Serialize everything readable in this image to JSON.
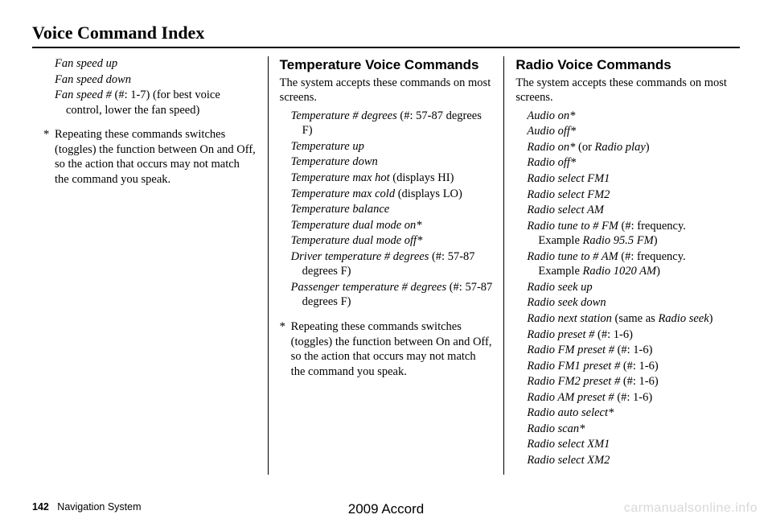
{
  "page": {
    "title": "Voice Command Index",
    "footer_page": "142",
    "footer_label": "Navigation System",
    "footer_center": "2009  Accord",
    "watermark": "carmanualsonline.info"
  },
  "col1": {
    "commands": [
      {
        "name": "Fan speed up",
        "suffix": ""
      },
      {
        "name": "Fan speed down",
        "suffix": ""
      },
      {
        "name": "Fan speed #",
        "suffix": " (#: 1-7) (for best voice control, lower the fan speed)"
      }
    ],
    "note_star": "*",
    "note": "Repeating these commands switches (toggles) the function between On and Off, so the action that occurs may not match the command you speak."
  },
  "col2": {
    "heading": "Temperature Voice Commands",
    "intro": "The system accepts these commands on most screens.",
    "commands": [
      {
        "name": "Temperature # degrees",
        "suffix": " (#: 57-87 degrees F)"
      },
      {
        "name": "Temperature up",
        "suffix": ""
      },
      {
        "name": "Temperature down",
        "suffix": ""
      },
      {
        "name": "Temperature max hot",
        "suffix": " (displays HI)"
      },
      {
        "name": "Temperature max cold",
        "suffix": " (displays LO)"
      },
      {
        "name": "Temperature balance",
        "suffix": ""
      },
      {
        "name": "Temperature dual mode on*",
        "suffix": ""
      },
      {
        "name": "Temperature dual mode off*",
        "suffix": ""
      },
      {
        "name": "Driver temperature # degrees",
        "suffix": " (#: 57-87 degrees F)"
      },
      {
        "name": "Passenger temperature # degrees",
        "suffix": " (#: 57-87 degrees F)"
      }
    ],
    "note_star": "*",
    "note": "Repeating these commands switches (toggles) the function between On and Off, so the action that occurs may not match the command you speak."
  },
  "col3": {
    "heading": "Radio Voice Commands",
    "intro": "The system accepts these commands on most screens.",
    "commands": [
      {
        "name": "Audio on*",
        "suffix": ""
      },
      {
        "name": "Audio off*",
        "suffix": ""
      },
      {
        "name": "Radio on*",
        "suffix": " (or ",
        "name2": "Radio play",
        "suffix2": ")"
      },
      {
        "name": "Radio off*",
        "suffix": ""
      },
      {
        "name": "Radio select FM1",
        "suffix": ""
      },
      {
        "name": "Radio select FM2",
        "suffix": ""
      },
      {
        "name": "Radio select AM",
        "suffix": ""
      },
      {
        "name": "Radio tune to # FM",
        "suffix": " (#: frequency. Example ",
        "name2": "Radio 95.5 FM",
        "suffix2": ")"
      },
      {
        "name": "Radio tune to # AM",
        "suffix": " (#: frequency. Example ",
        "name2": "Radio 1020 AM",
        "suffix2": ")"
      },
      {
        "name": "Radio seek up",
        "suffix": ""
      },
      {
        "name": "Radio seek down",
        "suffix": ""
      },
      {
        "name": "Radio next station",
        "suffix": " (same as ",
        "name2": "Radio seek",
        "suffix2": ")"
      },
      {
        "name": "Radio preset #",
        "suffix": " (#: 1-6)"
      },
      {
        "name": "Radio FM preset #",
        "suffix": " (#: 1-6)"
      },
      {
        "name": "Radio FM1 preset #",
        "suffix": " (#: 1-6)"
      },
      {
        "name": "Radio FM2 preset #",
        "suffix": " (#: 1-6)"
      },
      {
        "name": "Radio AM preset #",
        "suffix": " (#: 1-6)"
      },
      {
        "name": "Radio auto select*",
        "suffix": ""
      },
      {
        "name": "Radio scan*",
        "suffix": ""
      },
      {
        "name": "Radio select XM1",
        "suffix": ""
      },
      {
        "name": "Radio select XM2",
        "suffix": ""
      }
    ]
  }
}
